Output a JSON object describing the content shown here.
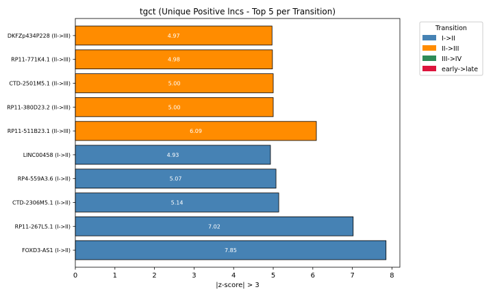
{
  "chart_data": {
    "type": "bar",
    "orientation": "horizontal",
    "title": "tgct (Unique Positive lncs - Top 5 per Transition)",
    "xlabel": "|z-score| > 3",
    "ylabel": "",
    "xlim": [
      0,
      8.2
    ],
    "xticks": [
      "0",
      "1",
      "2",
      "3",
      "4",
      "5",
      "6",
      "7",
      "8"
    ],
    "grid": false,
    "legend_position": "upper right, outside plot",
    "legend_title": "Transition",
    "legend": [
      {
        "label": "I->II",
        "color": "#4682b4"
      },
      {
        "label": "II->III",
        "color": "#ff8c00"
      },
      {
        "label": "III->IV",
        "color": "#2e8b57"
      },
      {
        "label": "early->late",
        "color": "#dc143c"
      }
    ],
    "bars": [
      {
        "category": "DKFZp434P228 (II->III)",
        "value": 4.97,
        "label": "4.97",
        "series": "II->III"
      },
      {
        "category": "RP11-771K4.1 (II->III)",
        "value": 4.98,
        "label": "4.98",
        "series": "II->III"
      },
      {
        "category": "CTD-2501M5.1 (II->III)",
        "value": 5.0,
        "label": "5.00",
        "series": "II->III"
      },
      {
        "category": "RP11-380D23.2 (II->III)",
        "value": 5.0,
        "label": "5.00",
        "series": "II->III"
      },
      {
        "category": "RP11-511B23.1 (II->III)",
        "value": 6.09,
        "label": "6.09",
        "series": "II->III"
      },
      {
        "category": "LINC00458 (I->II)",
        "value": 4.93,
        "label": "4.93",
        "series": "I->II"
      },
      {
        "category": "RP4-559A3.6 (I->II)",
        "value": 5.07,
        "label": "5.07",
        "series": "I->II"
      },
      {
        "category": "CTD-2306M5.1 (I->II)",
        "value": 5.14,
        "label": "5.14",
        "series": "I->II"
      },
      {
        "category": "RP11-267L5.1 (I->II)",
        "value": 7.02,
        "label": "7.02",
        "series": "I->II"
      },
      {
        "category": "FOXD3-AS1 (I->II)",
        "value": 7.85,
        "label": "7.85",
        "series": "I->II"
      }
    ]
  }
}
